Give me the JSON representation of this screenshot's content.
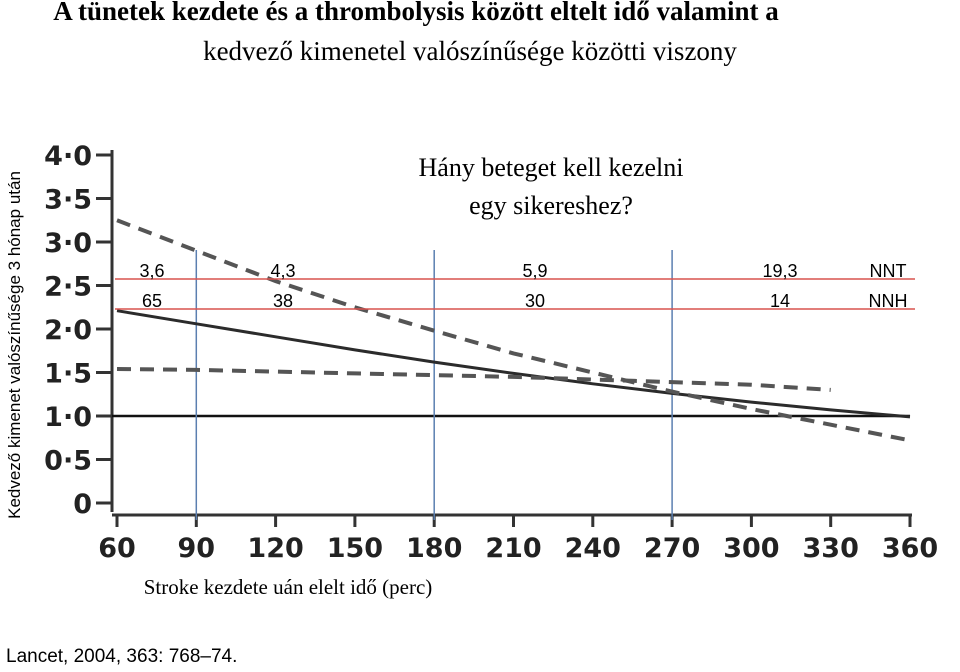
{
  "chart_data": {
    "type": "line",
    "title": [
      "A tünetek kezdete és a thrombolysis között eltelt idő valamint a",
      "kedvező kimenetel valószínűsége közötti viszony"
    ],
    "ylabel": "Kedvező kimenet valószínűsége 3 hónap után",
    "xlabel": "Stroke kezdete uán elelt idő (perc)",
    "source": "Lancet, 2004, 363: 768–74.",
    "annotation": [
      "Hány beteget kell kezelni",
      "egy sikereshez?"
    ],
    "x": [
      60,
      90,
      120,
      150,
      180,
      210,
      240,
      270,
      300,
      330,
      360
    ],
    "series": [
      {
        "color": "#2b2b2b",
        "dashed": false,
        "values": [
          2.21,
          2.06,
          1.91,
          1.76,
          1.62,
          1.49,
          1.37,
          1.26,
          1.16,
          1.07,
          0.99
        ]
      },
      {
        "color": "#555555",
        "dashed": true,
        "values": [
          3.25,
          2.9,
          2.55,
          2.25,
          1.98,
          1.72,
          1.5,
          1.28,
          1.08,
          0.9,
          0.72
        ]
      },
      {
        "color": "#555555",
        "dashed": true,
        "values": [
          1.54,
          1.53,
          1.51,
          1.49,
          1.47,
          1.45,
          1.42,
          1.39,
          1.36,
          1.3,
          null
        ]
      }
    ],
    "reference_line": 1,
    "vlines": [
      90,
      180,
      270
    ],
    "xlim": [
      60,
      360
    ],
    "xticks": [
      60,
      90,
      120,
      150,
      180,
      210,
      240,
      270,
      300,
      330,
      360
    ],
    "ylim": [
      0,
      4
    ],
    "yticks": [
      0,
      {
        "value": 0.5,
        "label": "0·5"
      },
      {
        "value": 1,
        "label": "1·0"
      },
      {
        "value": 1.5,
        "label": "1·5"
      },
      {
        "value": 2,
        "label": "2·0"
      },
      {
        "value": 2.5,
        "label": "2·5"
      },
      {
        "value": 3,
        "label": "3·0"
      },
      {
        "value": 3.5,
        "label": "3·5"
      },
      {
        "value": 4,
        "label": "4·0"
      }
    ],
    "rows": [
      {
        "label": "NNT",
        "values": [
          "3,6",
          "4,3",
          "5,9",
          "19,3"
        ]
      },
      {
        "label": "NNH",
        "values": [
          "65",
          "38",
          "30",
          "14"
        ]
      }
    ]
  }
}
